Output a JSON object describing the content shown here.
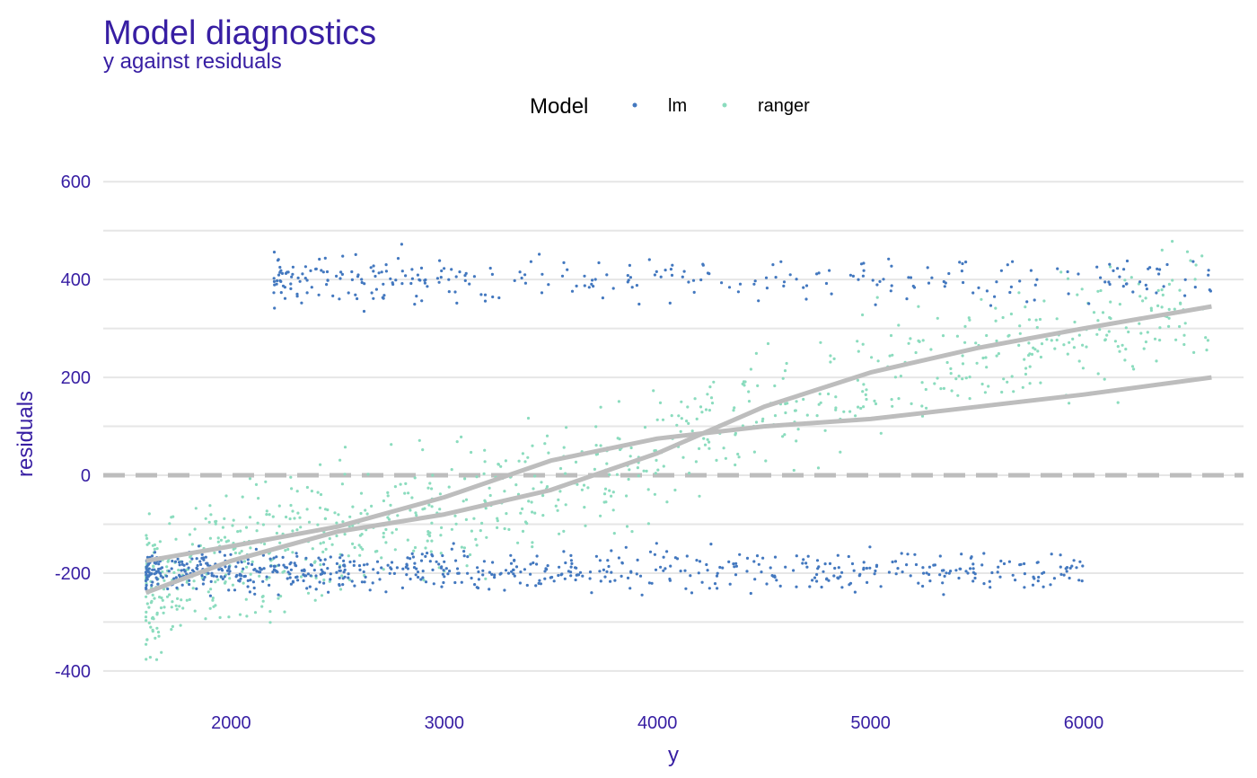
{
  "chart_data": {
    "type": "scatter",
    "title": "Model diagnostics",
    "subtitle": "y against residuals",
    "xlabel": "y",
    "ylabel": "residuals",
    "xlim": [
      1400,
      6750
    ],
    "ylim": [
      -470,
      650
    ],
    "x_ticks": [
      2000,
      3000,
      4000,
      5000,
      6000
    ],
    "x_tick_labels": [
      "2000",
      "3000",
      "4000",
      "5000",
      "6000"
    ],
    "y_ticks": [
      600,
      400,
      200,
      0,
      -200,
      -400
    ],
    "y_tick_labels": [
      "600",
      "400",
      "200",
      "0",
      "-200",
      "-400"
    ],
    "grid": true,
    "legend": {
      "title": "Model",
      "position": "top",
      "items": [
        {
          "label": "lm",
          "color": "#4378bf"
        },
        {
          "label": "ranger",
          "color": "#8bdcbe"
        }
      ]
    },
    "reference_line": {
      "y": 0,
      "style": "dashed",
      "color": "#bdbdbd"
    },
    "series": [
      {
        "name": "lm",
        "color": "#4378bf",
        "clusters": [
          {
            "x_range": [
              2200,
              6600
            ],
            "y_center": 400,
            "y_spread": 25,
            "count": 300
          },
          {
            "x_range": [
              1600,
              6000
            ],
            "y_center": -195,
            "y_spread": 20,
            "count": 700
          }
        ],
        "smooth": [
          [
            1600,
            -175
          ],
          [
            2000,
            -145
          ],
          [
            2500,
            -105
          ],
          [
            3000,
            -45
          ],
          [
            3500,
            30
          ],
          [
            4000,
            75
          ],
          [
            4500,
            100
          ],
          [
            5000,
            115
          ],
          [
            5500,
            140
          ],
          [
            6000,
            165
          ],
          [
            6600,
            200
          ]
        ]
      },
      {
        "name": "ranger",
        "color": "#8bdcbe",
        "smooth": [
          [
            1600,
            -240
          ],
          [
            2000,
            -175
          ],
          [
            2500,
            -115
          ],
          [
            3000,
            -80
          ],
          [
            3500,
            -30
          ],
          [
            4000,
            45
          ],
          [
            4500,
            140
          ],
          [
            5000,
            210
          ],
          [
            5500,
            260
          ],
          [
            6000,
            300
          ],
          [
            6600,
            345
          ]
        ]
      }
    ]
  }
}
